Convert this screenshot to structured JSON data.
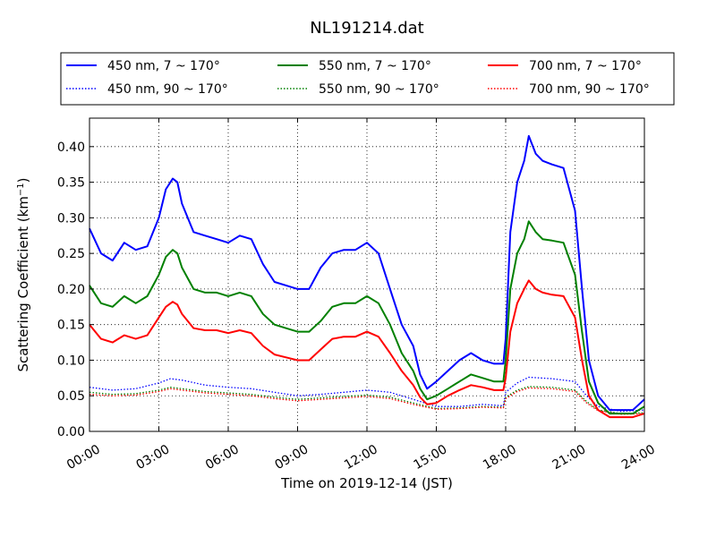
{
  "chart_data": {
    "type": "line",
    "title": "NL191214.dat",
    "xlabel": "Time on 2019-12-14 (JST)",
    "ylabel_main": "Scattering Coefficient (km",
    "ylabel_sup": "−1",
    "ylabel_close": ")",
    "xlim": [
      0,
      24
    ],
    "ylim": [
      0,
      0.44
    ],
    "grid": true,
    "legend_position": "top",
    "x_ticks": [
      {
        "value": 0,
        "label": "00:00"
      },
      {
        "value": 3,
        "label": "03:00"
      },
      {
        "value": 6,
        "label": "06:00"
      },
      {
        "value": 9,
        "label": "09:00"
      },
      {
        "value": 12,
        "label": "12:00"
      },
      {
        "value": 15,
        "label": "15:00"
      },
      {
        "value": 18,
        "label": "18:00"
      },
      {
        "value": 21,
        "label": "21:00"
      },
      {
        "value": 24,
        "label": "24:00"
      }
    ],
    "y_ticks": [
      {
        "value": 0.0,
        "label": "0.00"
      },
      {
        "value": 0.05,
        "label": "0.05"
      },
      {
        "value": 0.1,
        "label": "0.10"
      },
      {
        "value": 0.15,
        "label": "0.15"
      },
      {
        "value": 0.2,
        "label": "0.20"
      },
      {
        "value": 0.25,
        "label": "0.25"
      },
      {
        "value": 0.3,
        "label": "0.30"
      },
      {
        "value": 0.35,
        "label": "0.35"
      },
      {
        "value": 0.4,
        "label": "0.40"
      }
    ],
    "series": [
      {
        "name": "450 nm, 7 ~ 170°",
        "color": "#0000ff",
        "style": "solid",
        "x": [
          0,
          0.5,
          1,
          1.5,
          2,
          2.5,
          3,
          3.3,
          3.6,
          3.8,
          4,
          4.5,
          5,
          5.5,
          6,
          6.5,
          7,
          7.5,
          8,
          8.5,
          9,
          9.5,
          10,
          10.5,
          11,
          11.5,
          12,
          12.5,
          13,
          13.5,
          14,
          14.3,
          14.6,
          15,
          15.5,
          16,
          16.5,
          17,
          17.5,
          17.9,
          18,
          18.2,
          18.5,
          18.8,
          19,
          19.3,
          19.6,
          20,
          20.5,
          21,
          21.3,
          21.6,
          22,
          22.5,
          23,
          23.5,
          24
        ],
        "y": [
          0.285,
          0.25,
          0.24,
          0.265,
          0.255,
          0.26,
          0.3,
          0.34,
          0.355,
          0.35,
          0.32,
          0.28,
          0.275,
          0.27,
          0.265,
          0.275,
          0.27,
          0.235,
          0.21,
          0.205,
          0.2,
          0.2,
          0.23,
          0.25,
          0.255,
          0.255,
          0.265,
          0.25,
          0.2,
          0.15,
          0.12,
          0.08,
          0.06,
          0.07,
          0.085,
          0.1,
          0.11,
          0.1,
          0.095,
          0.095,
          0.13,
          0.28,
          0.35,
          0.38,
          0.415,
          0.39,
          0.38,
          0.375,
          0.37,
          0.31,
          0.2,
          0.1,
          0.05,
          0.03,
          0.03,
          0.03,
          0.045
        ]
      },
      {
        "name": "550 nm, 7 ~ 170°",
        "color": "#008000",
        "style": "solid",
        "x": [
          0,
          0.5,
          1,
          1.5,
          2,
          2.5,
          3,
          3.3,
          3.6,
          3.8,
          4,
          4.5,
          5,
          5.5,
          6,
          6.5,
          7,
          7.5,
          8,
          8.5,
          9,
          9.5,
          10,
          10.5,
          11,
          11.5,
          12,
          12.5,
          13,
          13.5,
          14,
          14.3,
          14.6,
          15,
          15.5,
          16,
          16.5,
          17,
          17.5,
          17.9,
          18,
          18.2,
          18.5,
          18.8,
          19,
          19.3,
          19.6,
          20,
          20.5,
          21,
          21.3,
          21.6,
          22,
          22.5,
          23,
          23.5,
          24
        ],
        "y": [
          0.205,
          0.18,
          0.175,
          0.19,
          0.18,
          0.19,
          0.22,
          0.245,
          0.255,
          0.25,
          0.23,
          0.2,
          0.195,
          0.195,
          0.19,
          0.195,
          0.19,
          0.165,
          0.15,
          0.145,
          0.14,
          0.14,
          0.155,
          0.175,
          0.18,
          0.18,
          0.19,
          0.18,
          0.15,
          0.11,
          0.085,
          0.06,
          0.045,
          0.05,
          0.06,
          0.07,
          0.08,
          0.075,
          0.07,
          0.07,
          0.1,
          0.2,
          0.25,
          0.27,
          0.295,
          0.28,
          0.27,
          0.268,
          0.265,
          0.22,
          0.14,
          0.07,
          0.04,
          0.025,
          0.025,
          0.025,
          0.035
        ]
      },
      {
        "name": "700 nm, 7 ~ 170°",
        "color": "#ff0000",
        "style": "solid",
        "x": [
          0,
          0.5,
          1,
          1.5,
          2,
          2.5,
          3,
          3.3,
          3.6,
          3.8,
          4,
          4.5,
          5,
          5.5,
          6,
          6.5,
          7,
          7.5,
          8,
          8.5,
          9,
          9.5,
          10,
          10.5,
          11,
          11.5,
          12,
          12.5,
          13,
          13.5,
          14,
          14.3,
          14.6,
          15,
          15.5,
          16,
          16.5,
          17,
          17.5,
          17.9,
          18,
          18.2,
          18.5,
          18.8,
          19,
          19.3,
          19.6,
          20,
          20.5,
          21,
          21.3,
          21.6,
          22,
          22.5,
          23,
          23.5,
          24
        ],
        "y": [
          0.15,
          0.13,
          0.125,
          0.135,
          0.13,
          0.135,
          0.16,
          0.175,
          0.182,
          0.178,
          0.165,
          0.145,
          0.142,
          0.142,
          0.138,
          0.142,
          0.138,
          0.12,
          0.108,
          0.104,
          0.1,
          0.1,
          0.115,
          0.13,
          0.133,
          0.133,
          0.14,
          0.133,
          0.11,
          0.085,
          0.065,
          0.048,
          0.038,
          0.04,
          0.05,
          0.058,
          0.065,
          0.062,
          0.058,
          0.058,
          0.075,
          0.14,
          0.18,
          0.2,
          0.212,
          0.2,
          0.195,
          0.192,
          0.19,
          0.16,
          0.1,
          0.05,
          0.03,
          0.02,
          0.02,
          0.02,
          0.025
        ]
      },
      {
        "name": "450 nm, 90 ~ 170°",
        "color": "#0000ff",
        "style": "dotted",
        "x": [
          0,
          1,
          2,
          3,
          3.5,
          4,
          5,
          6,
          7,
          8,
          9,
          10,
          11,
          12,
          13,
          14,
          15,
          16,
          17,
          17.9,
          18,
          18.5,
          19,
          20,
          21,
          21.5,
          22,
          23,
          24
        ],
        "y": [
          0.062,
          0.058,
          0.06,
          0.068,
          0.074,
          0.072,
          0.065,
          0.062,
          0.06,
          0.055,
          0.05,
          0.052,
          0.055,
          0.058,
          0.055,
          0.045,
          0.035,
          0.035,
          0.038,
          0.036,
          0.055,
          0.068,
          0.076,
          0.074,
          0.07,
          0.05,
          0.035,
          0.028,
          0.03
        ]
      },
      {
        "name": "550 nm, 90 ~ 170°",
        "color": "#008000",
        "style": "dotted",
        "x": [
          0,
          1,
          2,
          3,
          3.5,
          4,
          5,
          6,
          7,
          8,
          9,
          10,
          11,
          12,
          13,
          14,
          15,
          16,
          17,
          17.9,
          18,
          18.5,
          19,
          20,
          21,
          21.5,
          22,
          23,
          24
        ],
        "y": [
          0.055,
          0.052,
          0.053,
          0.058,
          0.062,
          0.06,
          0.056,
          0.054,
          0.052,
          0.048,
          0.045,
          0.047,
          0.049,
          0.051,
          0.048,
          0.04,
          0.032,
          0.033,
          0.035,
          0.034,
          0.048,
          0.058,
          0.063,
          0.062,
          0.058,
          0.042,
          0.03,
          0.025,
          0.026
        ]
      },
      {
        "name": "700 nm, 90 ~ 170°",
        "color": "#ff0000",
        "style": "dotted",
        "x": [
          0,
          1,
          2,
          3,
          3.5,
          4,
          5,
          6,
          7,
          8,
          9,
          10,
          11,
          12,
          13,
          14,
          15,
          16,
          17,
          17.9,
          18,
          18.5,
          19,
          20,
          21,
          21.5,
          22,
          23,
          24
        ],
        "y": [
          0.052,
          0.05,
          0.051,
          0.056,
          0.06,
          0.058,
          0.054,
          0.052,
          0.05,
          0.046,
          0.043,
          0.045,
          0.047,
          0.049,
          0.046,
          0.038,
          0.031,
          0.032,
          0.034,
          0.033,
          0.046,
          0.056,
          0.061,
          0.06,
          0.056,
          0.04,
          0.029,
          0.024,
          0.025
        ]
      }
    ],
    "legend": {
      "items": [
        {
          "label": "450 nm, 7 ~ 170°",
          "color": "#0000ff",
          "style": "solid"
        },
        {
          "label": "550 nm, 7 ~ 170°",
          "color": "#008000",
          "style": "solid"
        },
        {
          "label": "700 nm, 7 ~ 170°",
          "color": "#ff0000",
          "style": "solid"
        },
        {
          "label": "450 nm, 90 ~ 170°",
          "color": "#0000ff",
          "style": "dotted"
        },
        {
          "label": "550 nm, 90 ~ 170°",
          "color": "#008000",
          "style": "dotted"
        },
        {
          "label": "700 nm, 90 ~ 170°",
          "color": "#ff0000",
          "style": "dotted"
        }
      ]
    }
  }
}
